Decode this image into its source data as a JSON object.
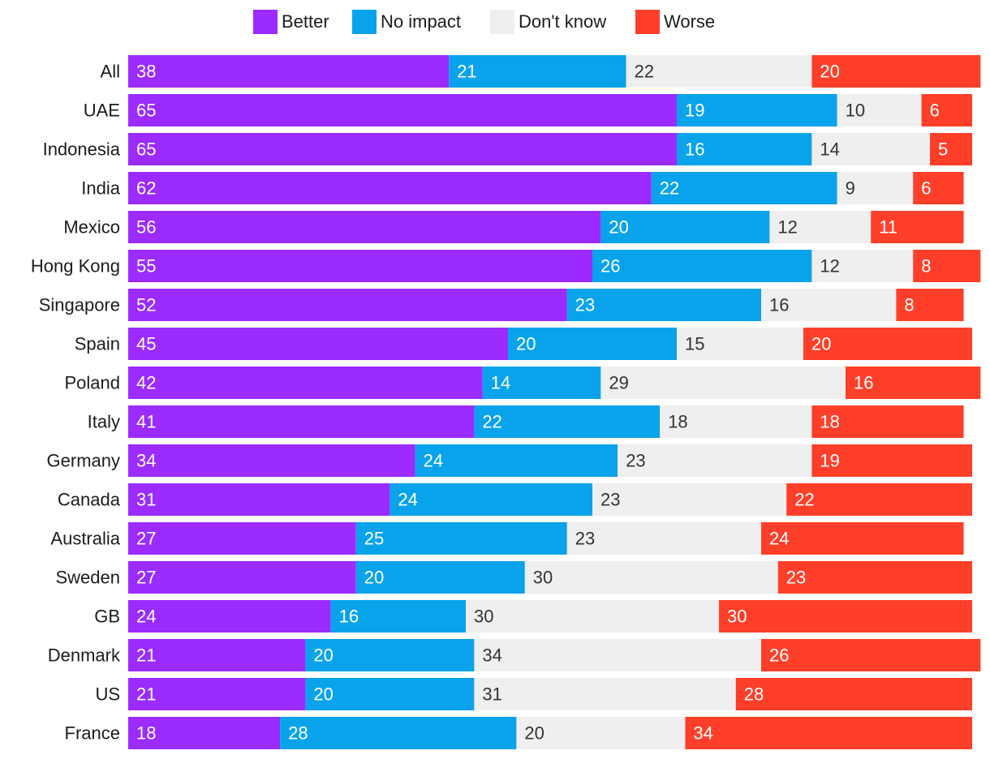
{
  "chart_data": {
    "type": "bar",
    "orientation": "horizontal",
    "stacked": true,
    "units": "percent",
    "legend_position": "top-center",
    "categories": [
      "All",
      "UAE",
      "Indonesia",
      "India",
      "Mexico",
      "Hong Kong",
      "Singapore",
      "Spain",
      "Poland",
      "Italy",
      "Germany",
      "Canada",
      "Australia",
      "Sweden",
      "GB",
      "Denmark",
      "US",
      "France"
    ],
    "series": [
      {
        "name": "Better",
        "color": "#9b2bff",
        "values": [
          38,
          65,
          65,
          62,
          56,
          55,
          52,
          45,
          42,
          41,
          34,
          31,
          27,
          27,
          24,
          21,
          21,
          18
        ]
      },
      {
        "name": "No impact",
        "color": "#09a3ec",
        "values": [
          21,
          19,
          16,
          22,
          20,
          26,
          23,
          20,
          14,
          22,
          24,
          24,
          25,
          20,
          16,
          20,
          20,
          28
        ]
      },
      {
        "name": "Don't know",
        "color": "#efefef",
        "values": [
          22,
          10,
          14,
          9,
          12,
          12,
          16,
          15,
          29,
          18,
          23,
          23,
          23,
          30,
          30,
          34,
          31,
          20
        ]
      },
      {
        "name": "Worse",
        "color": "#ff3f29",
        "values": [
          20,
          6,
          5,
          6,
          11,
          8,
          8,
          20,
          16,
          18,
          19,
          22,
          24,
          23,
          30,
          26,
          28,
          34
        ]
      }
    ]
  }
}
